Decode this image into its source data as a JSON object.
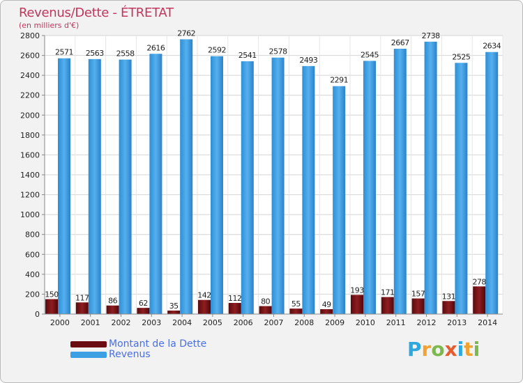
{
  "header": {
    "title": "Revenus/Dette - ÉTRETAT",
    "subtitle": "(en milliers d'€)"
  },
  "legend": {
    "items": [
      {
        "label": "Montant de la Dette",
        "color": "#6b0d10"
      },
      {
        "label": "Revenus",
        "color": "#3d9fe3"
      }
    ]
  },
  "brand": {
    "text": "Proxiti",
    "letters": [
      {
        "char": "P",
        "color": "#2fa8de"
      },
      {
        "char": "r",
        "color": "#f0a330"
      },
      {
        "char": "o",
        "color": "#7cb84c"
      },
      {
        "char": "x",
        "color": "#e85b2c"
      },
      {
        "char": "i",
        "color": "#2fa8de"
      },
      {
        "char": "t",
        "color": "#f0a330"
      },
      {
        "char": "i",
        "color": "#7cb84c"
      }
    ]
  },
  "chart_data": {
    "type": "bar",
    "categories": [
      "2000",
      "2001",
      "2002",
      "2003",
      "2004",
      "2005",
      "2006",
      "2007",
      "2008",
      "2009",
      "2010",
      "2011",
      "2012",
      "2013",
      "2014"
    ],
    "series": [
      {
        "name": "Montant de la Dette",
        "color": "#6b0d10",
        "values": [
          150,
          117,
          86,
          62,
          35,
          142,
          112,
          80,
          55,
          49,
          193,
          171,
          157,
          131,
          278
        ]
      },
      {
        "name": "Revenus",
        "color": "#3d9fe3",
        "values": [
          2571,
          2563,
          2558,
          2616,
          2762,
          2592,
          2541,
          2578,
          2493,
          2291,
          2545,
          2667,
          2738,
          2525,
          2634
        ]
      }
    ],
    "ylim": [
      0,
      2800
    ],
    "yticks": [
      0,
      200,
      400,
      600,
      800,
      1000,
      1200,
      1400,
      1600,
      1800,
      2000,
      2200,
      2400,
      2600,
      2800
    ],
    "grid": true,
    "legend_position": "bottom-left"
  }
}
